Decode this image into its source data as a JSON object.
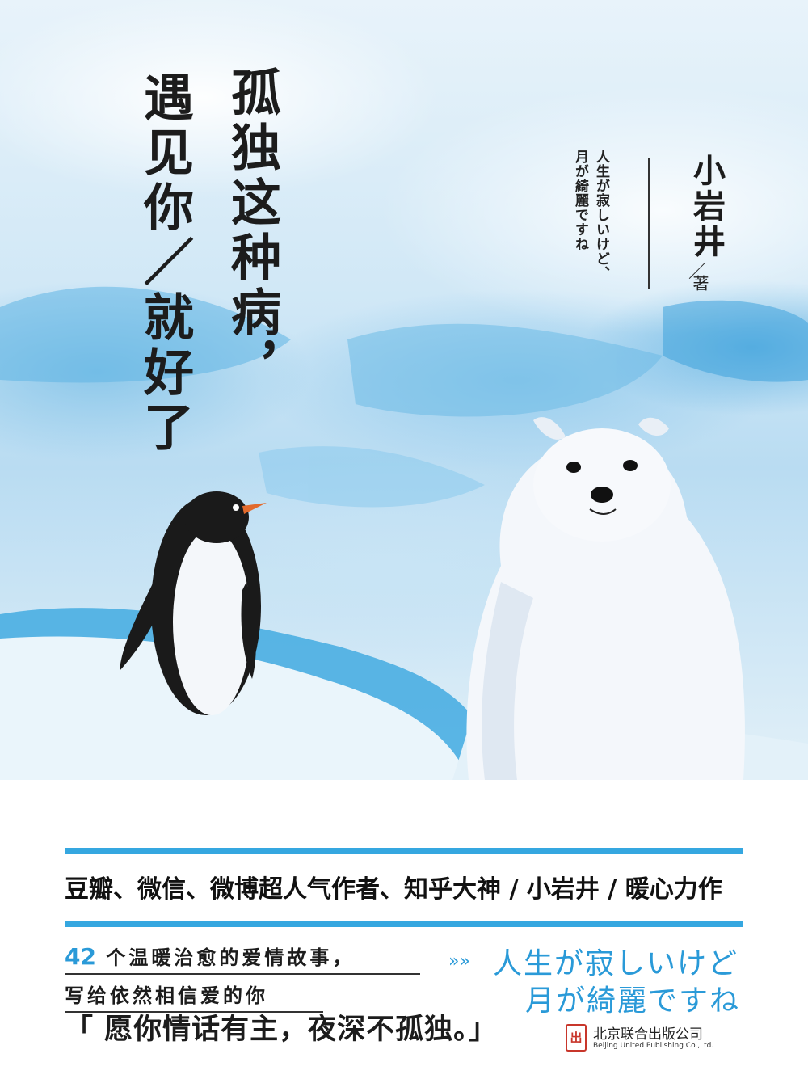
{
  "cover": {
    "title_line1": "遇见你／就好了",
    "title_line2": "孤独这种病，",
    "author": "小岩井",
    "author_mark": "／",
    "author_role": "著",
    "jp_vertical_line1": "人生が寂しいけど、",
    "jp_vertical_line2": "月が綺麗ですね",
    "illustration": {
      "penguin": "penguin-figure",
      "bear": "polar-bear-figure"
    }
  },
  "bottom": {
    "tagline_pre": "豆瓣、微信、微博超人气作者、知乎大神 / ",
    "tagline_author": "小岩井",
    "tagline_sep": " / ",
    "tagline_post": "暖心力作",
    "story_count": "42",
    "story_line1_rest": "个温暖治愈的爱情故事，",
    "story_line2": "写给依然相信爱的你",
    "jp_arrow": "»»",
    "jp_line1": "人生が寂しいけど",
    "jp_line2": "月が綺麗ですね",
    "quote": "「 愿你情话有主，夜深不孤独。」",
    "publisher_logo": "出",
    "publisher_name": "北京联合出版公司",
    "publisher_en": "Beijing United Publishing Co.,Ltd."
  },
  "colors": {
    "accent_blue": "#35a7e0",
    "jp_blue": "#2a9ad8",
    "seal_red": "#c8362b"
  }
}
